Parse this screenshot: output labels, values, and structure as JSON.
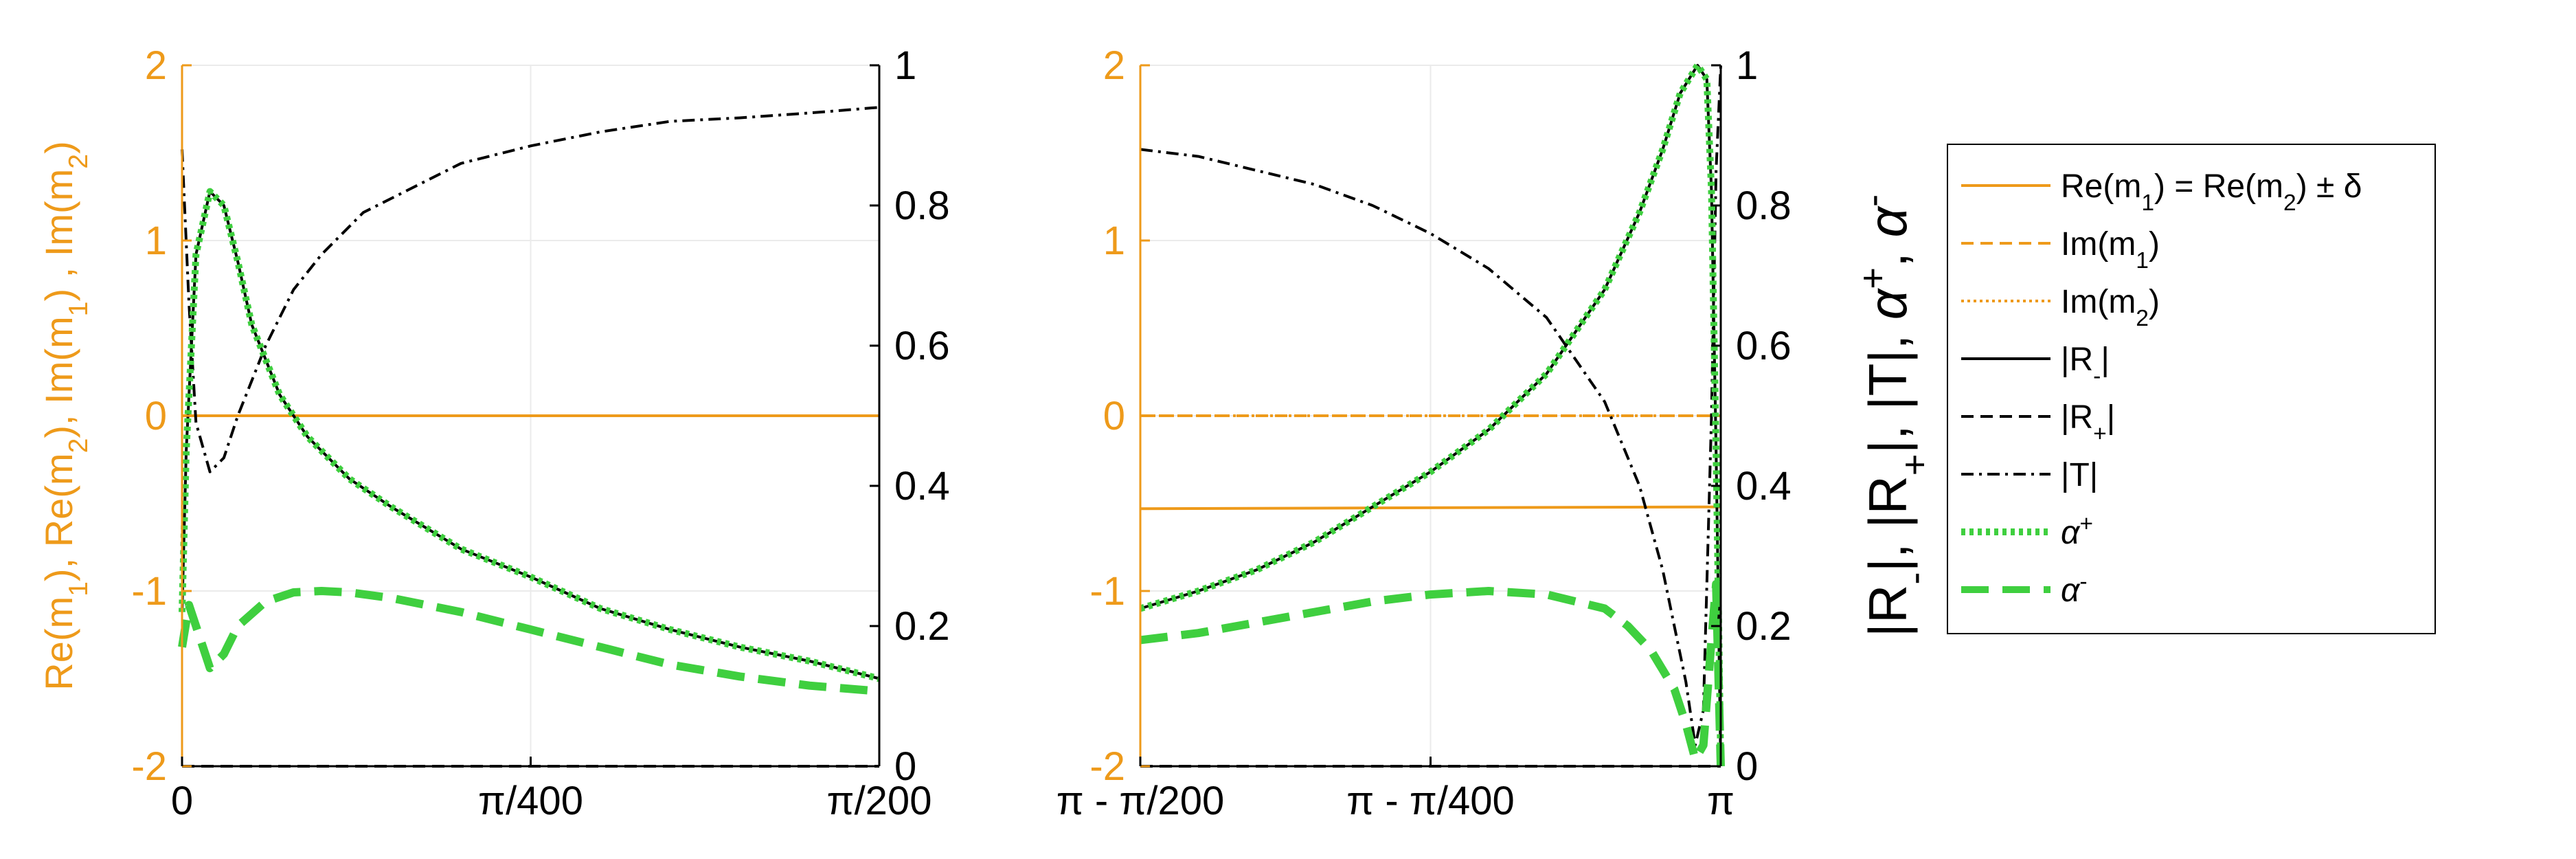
{
  "colors": {
    "orange": "#ee9a1a",
    "black": "#000000",
    "green": "#3fcf3f",
    "grid": "#ebebeb"
  },
  "chart_data": [
    {
      "type": "line",
      "x_unit": "pi",
      "xlim": [
        0,
        0.005
      ],
      "xticks": [
        0,
        0.0025,
        0.005
      ],
      "xtick_labels": [
        "0",
        "π/400",
        "π/200"
      ],
      "ylim_left": [
        -2,
        2
      ],
      "yticks_left": [
        "2",
        "1",
        "0",
        "-1",
        "-2"
      ],
      "ylim_right": [
        0,
        1
      ],
      "yticks_right": [
        "1",
        "0.8",
        "0.6",
        "0.4",
        "0.2",
        "0"
      ],
      "ylabel_left": "Re(m1), Re(m2), Im(m1) , Im(m2)",
      "grid": true,
      "series": [
        {
          "name": "Re(m1) = Re(m2) ± δ",
          "axis": "left",
          "style": "orange-solid",
          "x": [
            0,
            0.005
          ],
          "y": [
            0,
            0
          ]
        },
        {
          "name": "Im(m1)",
          "axis": "left",
          "style": "orange-dashed",
          "x": [
            0,
            0.005
          ],
          "y": [
            0,
            0
          ]
        },
        {
          "name": "Im(m2)",
          "axis": "left",
          "style": "orange-dotted",
          "x": [
            0,
            0.005
          ],
          "y": [
            0,
            0
          ]
        },
        {
          "name": "|R-|",
          "axis": "right",
          "style": "black-solid",
          "x": [
            0,
            3e-05,
            0.0001,
            0.0002,
            0.0003,
            0.0004,
            0.0005,
            0.0007,
            0.0009,
            0.0012,
            0.0015,
            0.002,
            0.0025,
            0.003,
            0.0035,
            0.004,
            0.0045,
            0.005
          ],
          "y": [
            0.22,
            0.45,
            0.73,
            0.82,
            0.8,
            0.72,
            0.63,
            0.53,
            0.47,
            0.41,
            0.37,
            0.31,
            0.27,
            0.225,
            0.195,
            0.17,
            0.15,
            0.125
          ]
        },
        {
          "name": "|R+|",
          "axis": "right",
          "style": "black-dashed",
          "x": [
            0,
            0.005
          ],
          "y": [
            0,
            0
          ]
        },
        {
          "name": "|T|",
          "axis": "right",
          "style": "black-dashdot",
          "x": [
            0,
            5e-05,
            0.0001,
            0.0002,
            0.0003,
            0.0004,
            0.0006,
            0.0008,
            0.001,
            0.0013,
            0.0016,
            0.002,
            0.0025,
            0.003,
            0.0035,
            0.004,
            0.0045,
            0.005
          ],
          "y": [
            0.88,
            0.66,
            0.49,
            0.42,
            0.44,
            0.5,
            0.6,
            0.68,
            0.73,
            0.79,
            0.82,
            0.86,
            0.885,
            0.905,
            0.92,
            0.925,
            0.932,
            0.94
          ]
        },
        {
          "name": "α+",
          "axis": "right",
          "style": "green-dotted",
          "x": [
            0,
            3e-05,
            0.0001,
            0.0002,
            0.0003,
            0.0004,
            0.0005,
            0.0007,
            0.0009,
            0.0012,
            0.0015,
            0.002,
            0.0025,
            0.003,
            0.0035,
            0.004,
            0.0045,
            0.005
          ],
          "y": [
            0.22,
            0.45,
            0.73,
            0.82,
            0.8,
            0.72,
            0.63,
            0.53,
            0.47,
            0.41,
            0.37,
            0.31,
            0.27,
            0.225,
            0.195,
            0.17,
            0.15,
            0.125
          ]
        },
        {
          "name": "α-",
          "axis": "right",
          "style": "green-dashed",
          "x": [
            0,
            5e-05,
            0.0001,
            0.0002,
            0.0003,
            0.0004,
            0.0006,
            0.0008,
            0.001,
            0.0012,
            0.0015,
            0.002,
            0.0025,
            0.003,
            0.0035,
            0.004,
            0.0045,
            0.005
          ],
          "y": [
            0.17,
            0.23,
            0.2,
            0.14,
            0.16,
            0.2,
            0.235,
            0.248,
            0.25,
            0.248,
            0.24,
            0.22,
            0.195,
            0.17,
            0.145,
            0.128,
            0.115,
            0.107
          ]
        }
      ]
    },
    {
      "type": "line",
      "x_unit": "pi",
      "xlim": [
        0.995,
        1.0
      ],
      "xticks": [
        0.995,
        0.9975,
        1.0
      ],
      "xtick_labels": [
        "π - π/200",
        "π - π/400",
        "π"
      ],
      "ylim_left": [
        -2,
        2
      ],
      "yticks_left": [
        "2",
        "1",
        "0",
        "-1",
        "-2"
      ],
      "ylim_right": [
        0,
        1
      ],
      "yticks_right": [
        "1",
        "0.8",
        "0.6",
        "0.4",
        "0.2",
        "0"
      ],
      "ylabel_right": "|R-|, |R+|, |T|, α+, α-",
      "grid": true,
      "series": [
        {
          "name": "Re(m1) = Re(m2) ± δ",
          "axis": "left",
          "style": "orange-solid",
          "x": [
            0.995,
            1.0
          ],
          "y": [
            -0.53,
            -0.52
          ]
        },
        {
          "name": "Im(m1)",
          "axis": "left",
          "style": "orange-dashed",
          "x": [
            0.995,
            1.0
          ],
          "y": [
            0,
            0
          ]
        },
        {
          "name": "Im(m2)",
          "axis": "left",
          "style": "orange-dotted",
          "x": [
            0.995,
            1.0
          ],
          "y": [
            0,
            0
          ]
        },
        {
          "name": "|R-|",
          "axis": "right",
          "style": "black-solid",
          "x": [
            0.995,
            0.9955,
            0.996,
            0.9965,
            0.997,
            0.9975,
            0.998,
            0.9985,
            0.999,
            0.9993,
            0.9995,
            0.99965,
            0.9998,
            0.99988,
            0.99992,
            0.99996,
            1.0
          ],
          "y": [
            0.225,
            0.25,
            0.28,
            0.32,
            0.37,
            0.42,
            0.48,
            0.56,
            0.68,
            0.79,
            0.88,
            0.96,
            1.0,
            0.98,
            0.82,
            0.45,
            0.0
          ]
        },
        {
          "name": "|R+|",
          "axis": "right",
          "style": "black-dashed",
          "x": [
            0.995,
            1.0
          ],
          "y": [
            0,
            0
          ]
        },
        {
          "name": "|T|",
          "axis": "right",
          "style": "black-dashdot",
          "x": [
            0.995,
            0.9955,
            0.996,
            0.9965,
            0.997,
            0.9975,
            0.998,
            0.9985,
            0.999,
            0.9993,
            0.9995,
            0.9997,
            0.99978,
            0.99985,
            0.99992,
            0.99996,
            1.0
          ],
          "y": [
            0.88,
            0.87,
            0.85,
            0.83,
            0.8,
            0.76,
            0.71,
            0.64,
            0.52,
            0.4,
            0.28,
            0.12,
            0.03,
            0.08,
            0.5,
            0.85,
            1.0
          ]
        },
        {
          "name": "α+",
          "axis": "right",
          "style": "green-dotted",
          "x": [
            0.995,
            0.9955,
            0.996,
            0.9965,
            0.997,
            0.9975,
            0.998,
            0.9985,
            0.999,
            0.9993,
            0.9995,
            0.99965,
            0.9998,
            0.99988,
            0.99992,
            0.99996,
            1.0
          ],
          "y": [
            0.225,
            0.25,
            0.28,
            0.32,
            0.37,
            0.42,
            0.48,
            0.56,
            0.68,
            0.79,
            0.88,
            0.96,
            1.0,
            0.98,
            0.82,
            0.45,
            0.0
          ]
        },
        {
          "name": "α-",
          "axis": "right",
          "style": "green-dashed",
          "x": [
            0.995,
            0.9955,
            0.996,
            0.9965,
            0.997,
            0.9975,
            0.998,
            0.9985,
            0.999,
            0.9992,
            0.9994,
            0.9996,
            0.9997,
            0.99978,
            0.99985,
            0.99992,
            0.99996,
            1.0
          ],
          "y": [
            0.18,
            0.19,
            0.205,
            0.22,
            0.235,
            0.245,
            0.25,
            0.245,
            0.225,
            0.2,
            0.165,
            0.11,
            0.06,
            0.01,
            0.03,
            0.18,
            0.26,
            0.0
          ]
        }
      ]
    }
  ],
  "legend": {
    "placement": "right",
    "entries": [
      {
        "style": "orange-solid",
        "label": "Re(m1) = Re(m2) ± δ"
      },
      {
        "style": "orange-dashed",
        "label": "Im(m1)"
      },
      {
        "style": "orange-dotted",
        "label": "Im(m2)"
      },
      {
        "style": "black-solid",
        "label": "|R-|"
      },
      {
        "style": "black-dashed",
        "label": "|R+|"
      },
      {
        "style": "black-dashdot",
        "label": "|T|"
      },
      {
        "style": "green-dotted",
        "label": "α+"
      },
      {
        "style": "green-dashed",
        "label": "α-"
      }
    ]
  }
}
